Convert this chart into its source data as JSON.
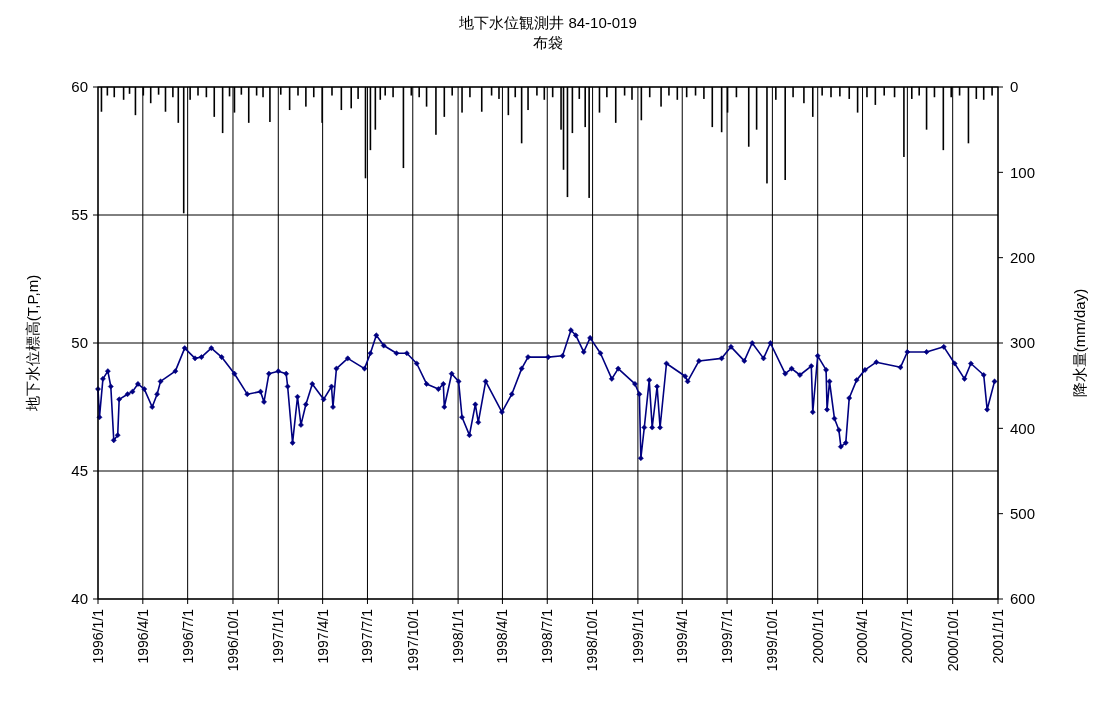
{
  "chart_data": {
    "type": "line",
    "title": "地下水位観測井 84-10-019",
    "subtitle": "布袋",
    "ylabel": "地下水位標高(T,P,m)",
    "y2label": "降水量(mm/day)",
    "xlim": [
      "1996-01-01",
      "2001-01-01"
    ],
    "xticks": [
      {
        "value": "1996-01-01",
        "label": "1996/1/1"
      },
      {
        "value": "1996-04-01",
        "label": "1996/4/1"
      },
      {
        "value": "1996-07-01",
        "label": "1996/7/1"
      },
      {
        "value": "1996-10-01",
        "label": "1996/10/1"
      },
      {
        "value": "1997-01-01",
        "label": "1997/1/1"
      },
      {
        "value": "1997-04-01",
        "label": "1997/4/1"
      },
      {
        "value": "1997-07-01",
        "label": "1997/7/1"
      },
      {
        "value": "1997-10-01",
        "label": "1997/10/1"
      },
      {
        "value": "1998-01-01",
        "label": "1998/1/1"
      },
      {
        "value": "1998-04-01",
        "label": "1998/4/1"
      },
      {
        "value": "1998-07-01",
        "label": "1998/7/1"
      },
      {
        "value": "1998-10-01",
        "label": "1998/10/1"
      },
      {
        "value": "1999-01-01",
        "label": "1999/1/1"
      },
      {
        "value": "1999-04-01",
        "label": "1999/4/1"
      },
      {
        "value": "1999-07-01",
        "label": "1999/7/1"
      },
      {
        "value": "1999-10-01",
        "label": "1999/10/1"
      },
      {
        "value": "2000-01-01",
        "label": "2000/1/1"
      },
      {
        "value": "2000-04-01",
        "label": "2000/4/1"
      },
      {
        "value": "2000-07-01",
        "label": "2000/7/1"
      },
      {
        "value": "2000-10-01",
        "label": "2000/10/1"
      },
      {
        "value": "2001-01-01",
        "label": "2001/1/1"
      }
    ],
    "ylim": [
      40,
      60
    ],
    "yticks": [
      40,
      45,
      50,
      55,
      60
    ],
    "y2lim": [
      600,
      0
    ],
    "y2ticks": [
      0,
      100,
      200,
      300,
      400,
      500,
      600
    ],
    "grid": true,
    "marker": "diamond",
    "series": [
      {
        "type": "bar",
        "axis": "y2",
        "color": "#000000",
        "x": [
          "1996-01-08",
          "1996-01-20",
          "1996-02-03",
          "1996-02-22",
          "1996-03-05",
          "1996-03-17",
          "1996-04-02",
          "1996-04-17",
          "1996-05-03",
          "1996-05-17",
          "1996-06-01",
          "1996-06-12",
          "1996-06-23",
          "1996-07-06",
          "1996-07-22",
          "1996-08-08",
          "1996-08-24",
          "1996-09-10",
          "1996-09-24",
          "1996-10-04",
          "1996-10-18",
          "1996-11-02",
          "1996-11-18",
          "1996-12-01",
          "1996-12-15",
          "1997-01-06",
          "1997-01-24",
          "1997-02-10",
          "1997-02-26",
          "1997-03-14",
          "1997-03-31",
          "1997-04-20",
          "1997-05-09",
          "1997-05-29",
          "1997-06-12",
          "1997-06-27",
          "1997-07-07",
          "1997-07-17",
          "1997-07-27",
          "1997-08-06",
          "1997-08-22",
          "1997-09-12",
          "1997-09-28",
          "1997-10-14",
          "1997-10-29",
          "1997-11-17",
          "1997-12-04",
          "1997-12-20",
          "1998-01-09",
          "1998-01-25",
          "1998-02-18",
          "1998-03-10",
          "1998-03-25",
          "1998-04-13",
          "1998-04-27",
          "1998-05-10",
          "1998-05-23",
          "1998-06-10",
          "1998-06-25",
          "1998-07-12",
          "1998-07-29",
          "1998-08-03",
          "1998-08-11",
          "1998-08-21",
          "1998-09-04",
          "1998-09-16",
          "1998-09-24",
          "1998-10-15",
          "1998-10-30",
          "1998-11-17",
          "1998-12-05",
          "1998-12-20",
          "1999-01-08",
          "1999-01-25",
          "1999-02-17",
          "1999-03-05",
          "1999-03-22",
          "1999-04-10",
          "1999-04-28",
          "1999-05-15",
          "1999-06-01",
          "1999-06-20",
          "1999-07-02",
          "1999-07-20",
          "1999-08-14",
          "1999-08-30",
          "1999-09-20",
          "1999-10-08",
          "1999-10-27",
          "1999-11-12",
          "1999-12-04",
          "1999-12-22",
          "2000-01-10",
          "2000-01-28",
          "2000-02-15",
          "2000-03-05",
          "2000-03-22",
          "2000-04-10",
          "2000-04-27",
          "2000-05-15",
          "2000-06-05",
          "2000-06-24",
          "2000-07-10",
          "2000-07-25",
          "2000-08-09",
          "2000-08-25",
          "2000-09-12",
          "2000-09-28",
          "2000-10-15",
          "2000-11-02",
          "2000-11-18",
          "2000-12-03",
          "2000-12-20"
        ],
        "values": [
          29,
          10,
          12,
          15,
          8,
          33,
          10,
          19,
          9,
          29,
          12,
          42,
          148,
          15,
          10,
          12,
          35,
          54,
          11,
          30,
          9,
          42,
          10,
          12,
          41,
          9,
          27,
          10,
          23,
          12,
          42,
          10,
          27,
          25,
          14,
          107,
          74,
          50,
          15,
          10,
          12,
          95,
          10,
          12,
          23,
          56,
          35,
          10,
          30,
          12,
          29,
          10,
          14,
          33,
          12,
          66,
          27,
          10,
          15,
          12,
          50,
          97,
          129,
          54,
          14,
          47,
          130,
          30,
          12,
          42,
          10,
          15,
          39,
          12,
          23,
          10,
          15,
          12,
          10,
          14,
          47,
          53,
          30,
          12,
          70,
          50,
          113,
          15,
          109,
          12,
          19,
          35,
          10,
          12,
          11,
          14,
          30,
          12,
          21,
          10,
          12,
          82,
          14,
          10,
          50,
          12,
          74,
          12,
          10,
          66,
          14,
          15,
          10
        ]
      },
      {
        "color": "#000080",
        "x": [
          "1996-01-01",
          "1996-01-04",
          "1996-01-11",
          "1996-01-21",
          "1996-01-27",
          "1996-02-02",
          "1996-02-10",
          "1996-02-13",
          "1996-03-01",
          "1996-03-11",
          "1996-03-22",
          "1996-04-04",
          "1996-04-20",
          "1996-04-30",
          "1996-05-07",
          "1996-06-06",
          "1996-06-25",
          "1996-07-16",
          "1996-07-29",
          "1996-08-18",
          "1996-09-08",
          "1996-10-04",
          "1996-10-30",
          "1996-11-26",
          "1996-12-03",
          "1996-12-13",
          "1997-01-01",
          "1997-01-17",
          "1997-01-20",
          "1997-01-30",
          "1997-02-09",
          "1997-02-16",
          "1997-02-26",
          "1997-03-11",
          "1997-04-03",
          "1997-04-19",
          "1997-04-22",
          "1997-04-29",
          "1997-05-22",
          "1997-06-25",
          "1997-07-07",
          "1997-07-19",
          "1997-08-03",
          "1997-08-29",
          "1997-09-19",
          "1997-10-09",
          "1997-10-29",
          "1997-11-22",
          "1997-12-02",
          "1997-12-04",
          "1997-12-19",
          "1998-01-02",
          "1998-01-09",
          "1998-01-24",
          "1998-02-05",
          "1998-02-11",
          "1998-02-26",
          "1998-03-31",
          "1998-04-20",
          "1998-05-10",
          "1998-05-23",
          "1998-07-03",
          "1998-08-01",
          "1998-08-18",
          "1998-08-28",
          "1998-09-13",
          "1998-09-26",
          "1998-10-17",
          "1998-11-09",
          "1998-11-22",
          "1998-12-26",
          "1999-01-04",
          "1999-01-07",
          "1999-01-14",
          "1999-01-24",
          "1999-01-30",
          "1999-02-09",
          "1999-02-15",
          "1999-02-28",
          "1999-04-07",
          "1999-04-12",
          "1999-05-05",
          "1999-06-20",
          "1999-07-09",
          "1999-08-05",
          "1999-08-21",
          "1999-09-13",
          "1999-09-27",
          "1999-10-27",
          "1999-11-09",
          "1999-11-26",
          "1999-12-19",
          "1999-12-22",
          "2000-01-01",
          "2000-01-18",
          "2000-01-20",
          "2000-01-25",
          "2000-02-04",
          "2000-02-13",
          "2000-02-17",
          "2000-02-27",
          "2000-03-05",
          "2000-03-20",
          "2000-04-06",
          "2000-04-29",
          "2000-06-17",
          "2000-07-01",
          "2000-08-09",
          "2000-09-13",
          "2000-10-05",
          "2000-10-25",
          "2000-11-07",
          "2000-12-03",
          "2000-12-10",
          "2000-12-25"
        ],
        "values": [
          48.2,
          47.1,
          48.6,
          48.9,
          48.3,
          46.2,
          46.4,
          47.8,
          48.0,
          48.1,
          48.4,
          48.2,
          47.5,
          48.0,
          48.5,
          48.9,
          49.8,
          49.4,
          49.45,
          49.8,
          49.45,
          48.8,
          48.0,
          48.1,
          47.7,
          48.8,
          48.9,
          48.8,
          48.3,
          46.1,
          47.9,
          46.8,
          47.6,
          48.4,
          47.8,
          48.3,
          47.5,
          49.0,
          49.4,
          49.0,
          49.6,
          50.3,
          49.9,
          49.6,
          49.6,
          49.2,
          48.4,
          48.2,
          48.4,
          47.5,
          48.8,
          48.5,
          47.1,
          46.4,
          47.6,
          46.9,
          48.5,
          47.3,
          48.0,
          49.0,
          49.45,
          49.45,
          49.5,
          50.5,
          50.3,
          49.65,
          50.2,
          49.6,
          48.6,
          49.0,
          48.4,
          48.0,
          45.5,
          46.7,
          48.55,
          46.7,
          48.3,
          46.7,
          49.2,
          48.7,
          48.5,
          49.3,
          49.4,
          49.85,
          49.3,
          50.0,
          49.4,
          50.0,
          48.8,
          49.0,
          48.75,
          49.1,
          47.3,
          49.5,
          48.95,
          47.4,
          48.5,
          47.05,
          46.6,
          45.95,
          46.1,
          47.85,
          48.55,
          48.95,
          49.25,
          49.05,
          49.65,
          49.65,
          49.85,
          49.2,
          48.6,
          49.2,
          48.75,
          47.4,
          48.5
        ]
      }
    ]
  }
}
